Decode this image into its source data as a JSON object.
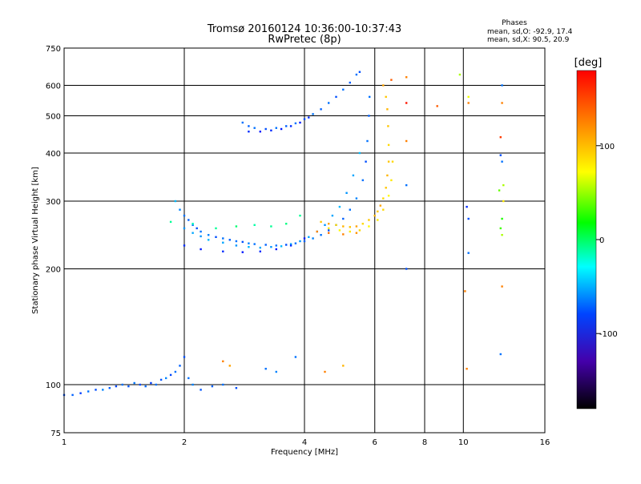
{
  "title_line1": "Tromsø 20160124 10:36:00-10:37:43",
  "title_line2": "RwPretec (8p)",
  "stats": {
    "header": "Phases",
    "line_o": "mean, sd,O: -92.9, 17.4",
    "line_x": "mean, sd,X:  90.5, 20.9"
  },
  "colorbar": {
    "title": "[deg]",
    "ticks": [
      100,
      0,
      -100
    ],
    "tick_labels": [
      "100",
      "0",
      "-100"
    ],
    "range": [
      -180,
      180
    ]
  },
  "chart_data": {
    "type": "scatter",
    "xlabel": "Frequency [MHz]",
    "ylabel": "Stationary phase Virtual Height [km]",
    "xscale": "log",
    "yscale": "log",
    "xlim": [
      1,
      16
    ],
    "ylim": [
      75,
      750
    ],
    "x_ticks": [
      1,
      2,
      4,
      6,
      8,
      10,
      16
    ],
    "x_tick_labels": [
      "1",
      "2",
      "4",
      "6",
      "8",
      "10",
      "16"
    ],
    "y_ticks": [
      75,
      100,
      200,
      300,
      400,
      500,
      600,
      750
    ],
    "y_tick_labels": [
      "75",
      "100",
      "200",
      "300",
      "400",
      "500",
      "600",
      "750"
    ],
    "grid": true,
    "series": [
      {
        "points": [
          [
            1.0,
            94,
            -110
          ],
          [
            1.05,
            94,
            -105
          ],
          [
            1.1,
            95,
            -115
          ],
          [
            1.15,
            96,
            -100
          ],
          [
            1.2,
            97,
            -110
          ],
          [
            1.25,
            97,
            -95
          ],
          [
            1.3,
            98,
            -105
          ],
          [
            1.35,
            99,
            -112
          ],
          [
            1.4,
            100,
            -100
          ],
          [
            1.45,
            99,
            -108
          ],
          [
            1.5,
            101,
            -98
          ],
          [
            1.55,
            100,
            -110
          ],
          [
            1.6,
            99,
            -102
          ],
          [
            1.65,
            101,
            -115
          ],
          [
            1.7,
            100,
            -100
          ],
          [
            1.75,
            103,
            -108
          ],
          [
            1.8,
            104,
            -95
          ],
          [
            1.85,
            106,
            -112
          ],
          [
            1.9,
            108,
            -100
          ],
          [
            1.95,
            112,
            -105
          ],
          [
            2.0,
            118,
            -110
          ],
          [
            2.05,
            104,
            -100
          ],
          [
            2.1,
            100,
            -95
          ],
          [
            2.2,
            97,
            -108
          ],
          [
            2.35,
            99,
            -105
          ],
          [
            2.5,
            100,
            -100
          ],
          [
            2.7,
            98,
            -110
          ],
          [
            3.2,
            110,
            -100
          ],
          [
            3.4,
            108,
            -95
          ],
          [
            3.8,
            118,
            -100
          ],
          [
            1.9,
            300,
            -80
          ],
          [
            1.95,
            285,
            -95
          ],
          [
            2.0,
            275,
            -100
          ],
          [
            2.05,
            268,
            -105
          ],
          [
            2.1,
            260,
            -100
          ],
          [
            2.15,
            255,
            -110
          ],
          [
            2.2,
            250,
            -100
          ],
          [
            2.3,
            245,
            -95
          ],
          [
            2.4,
            242,
            -110
          ],
          [
            2.5,
            240,
            -100
          ],
          [
            2.6,
            238,
            -105
          ],
          [
            2.7,
            236,
            -100
          ],
          [
            2.8,
            235,
            -110
          ],
          [
            2.9,
            233,
            -95
          ],
          [
            3.0,
            232,
            -100
          ],
          [
            3.2,
            231,
            -105
          ],
          [
            3.4,
            230,
            -100
          ],
          [
            3.6,
            231,
            -110
          ],
          [
            3.8,
            233,
            -100
          ],
          [
            4.0,
            236,
            -105
          ],
          [
            4.2,
            240,
            -95
          ],
          [
            4.4,
            245,
            -100
          ],
          [
            4.6,
            252,
            -110
          ],
          [
            4.8,
            260,
            -100
          ],
          [
            5.0,
            270,
            -105
          ],
          [
            5.2,
            285,
            -100
          ],
          [
            5.4,
            305,
            -95
          ],
          [
            5.6,
            340,
            -100
          ],
          [
            5.7,
            380,
            -110
          ],
          [
            5.75,
            430,
            -100
          ],
          [
            5.8,
            500,
            -105
          ],
          [
            5.82,
            560,
            -100
          ],
          [
            2.0,
            255,
            -90
          ],
          [
            2.1,
            248,
            -85
          ],
          [
            2.2,
            243,
            -90
          ],
          [
            2.3,
            238,
            -80
          ],
          [
            2.5,
            234,
            -85
          ],
          [
            2.7,
            230,
            -90
          ],
          [
            2.9,
            228,
            -80
          ],
          [
            3.1,
            227,
            -85
          ],
          [
            3.3,
            228,
            -90
          ],
          [
            3.5,
            229,
            -80
          ],
          [
            3.7,
            232,
            -85
          ],
          [
            3.9,
            236,
            -90
          ],
          [
            4.1,
            242,
            -85
          ],
          [
            4.3,
            250,
            -80
          ],
          [
            4.5,
            260,
            -90
          ],
          [
            4.7,
            275,
            -85
          ],
          [
            4.9,
            290,
            -80
          ],
          [
            5.1,
            315,
            -90
          ],
          [
            5.3,
            350,
            -85
          ],
          [
            5.5,
            400,
            -80
          ],
          [
            2.0,
            230,
            -120
          ],
          [
            2.2,
            225,
            -125
          ],
          [
            2.5,
            222,
            -120
          ],
          [
            2.8,
            221,
            -125
          ],
          [
            3.1,
            222,
            -120
          ],
          [
            3.4,
            225,
            -125
          ],
          [
            3.7,
            230,
            -120
          ],
          [
            4.0,
            240,
            -125
          ],
          [
            2.8,
            480,
            -100
          ],
          [
            2.9,
            470,
            -105
          ],
          [
            3.0,
            465,
            -100
          ],
          [
            3.2,
            462,
            -110
          ],
          [
            3.4,
            465,
            -100
          ],
          [
            3.6,
            470,
            -105
          ],
          [
            3.8,
            478,
            -100
          ],
          [
            4.0,
            490,
            -110
          ],
          [
            4.2,
            505,
            -100
          ],
          [
            4.4,
            520,
            -105
          ],
          [
            4.6,
            540,
            -100
          ],
          [
            4.8,
            560,
            -110
          ],
          [
            5.0,
            585,
            -100
          ],
          [
            5.2,
            610,
            -105
          ],
          [
            5.4,
            640,
            -100
          ],
          [
            5.5,
            650,
            -110
          ],
          [
            2.9,
            455,
            -120
          ],
          [
            3.1,
            455,
            -125
          ],
          [
            3.3,
            458,
            -120
          ],
          [
            3.5,
            462,
            -125
          ],
          [
            3.7,
            470,
            -120
          ],
          [
            3.9,
            480,
            -125
          ],
          [
            4.1,
            495,
            -120
          ],
          [
            1.85,
            265,
            -30
          ],
          [
            2.1,
            262,
            -40
          ],
          [
            2.4,
            255,
            -30
          ],
          [
            2.7,
            258,
            -20
          ],
          [
            3.0,
            260,
            -35
          ],
          [
            3.3,
            258,
            -30
          ],
          [
            3.6,
            262,
            -25
          ],
          [
            3.9,
            275,
            -30
          ]
        ]
      },
      {
        "points": [
          [
            4.4,
            265,
            100
          ],
          [
            4.6,
            262,
            110
          ],
          [
            4.8,
            260,
            95
          ],
          [
            5.0,
            258,
            105
          ],
          [
            5.2,
            257,
            100
          ],
          [
            5.4,
            258,
            110
          ],
          [
            5.6,
            262,
            95
          ],
          [
            5.8,
            268,
            100
          ],
          [
            6.0,
            275,
            105
          ],
          [
            6.1,
            282,
            100
          ],
          [
            6.2,
            292,
            110
          ],
          [
            6.3,
            305,
            95
          ],
          [
            6.4,
            325,
            100
          ],
          [
            6.45,
            350,
            105
          ],
          [
            6.5,
            380,
            100
          ],
          [
            6.5,
            420,
            95
          ],
          [
            6.48,
            470,
            100
          ],
          [
            6.45,
            520,
            105
          ],
          [
            6.4,
            560,
            100
          ],
          [
            4.6,
            255,
            90
          ],
          [
            4.9,
            252,
            85
          ],
          [
            5.2,
            250,
            90
          ],
          [
            5.5,
            252,
            95
          ],
          [
            5.8,
            258,
            85
          ],
          [
            6.1,
            268,
            90
          ],
          [
            6.3,
            285,
            95
          ],
          [
            6.5,
            310,
            85
          ],
          [
            6.6,
            340,
            90
          ],
          [
            6.65,
            380,
            95
          ],
          [
            4.3,
            250,
            120
          ],
          [
            4.6,
            248,
            125
          ],
          [
            5.0,
            246,
            120
          ],
          [
            5.4,
            248,
            115
          ],
          [
            6.3,
            600,
            110
          ],
          [
            6.6,
            620,
            130
          ],
          [
            7.2,
            630,
            120
          ],
          [
            7.2,
            540,
            150
          ],
          [
            7.2,
            430,
            120
          ],
          [
            7.2,
            330,
            -100
          ],
          [
            7.2,
            200,
            -110
          ],
          [
            10.2,
            290,
            -120
          ],
          [
            10.3,
            270,
            -110
          ],
          [
            10.3,
            220,
            -100
          ],
          [
            10.3,
            560,
            80
          ],
          [
            10.3,
            540,
            120
          ],
          [
            10.1,
            175,
            120
          ],
          [
            10.2,
            110,
            120
          ],
          [
            12.5,
            600,
            -100
          ],
          [
            12.5,
            540,
            120
          ],
          [
            12.4,
            440,
            140
          ],
          [
            12.4,
            395,
            -110
          ],
          [
            12.5,
            380,
            -100
          ],
          [
            12.6,
            330,
            60
          ],
          [
            12.3,
            320,
            40
          ],
          [
            12.6,
            300,
            90
          ],
          [
            12.5,
            270,
            20
          ],
          [
            12.4,
            255,
            30
          ],
          [
            12.5,
            245,
            60
          ],
          [
            12.5,
            180,
            120
          ],
          [
            12.4,
            120,
            -100
          ],
          [
            9.8,
            640,
            60
          ],
          [
            8.6,
            530,
            130
          ],
          [
            2.5,
            115,
            120
          ],
          [
            2.6,
            112,
            110
          ],
          [
            4.5,
            108,
            120
          ],
          [
            5.0,
            112,
            105
          ]
        ]
      }
    ]
  }
}
